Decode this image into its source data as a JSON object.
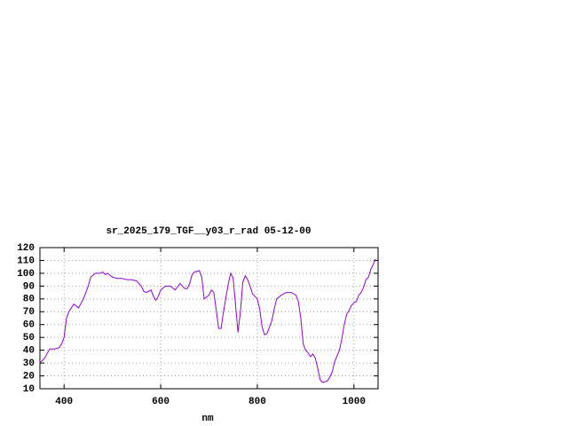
{
  "chart_data": {
    "type": "line",
    "title": "sr_2025_179_TGF__y03_r_rad 05-12-00",
    "xlabel": "nm",
    "color": "#9400d3",
    "grid": true,
    "xlim": [
      350,
      1050
    ],
    "xticks": [
      400,
      600,
      800,
      1000
    ],
    "ylim": [
      10,
      120
    ],
    "yticks": [
      10,
      20,
      30,
      40,
      50,
      60,
      70,
      80,
      90,
      100,
      110,
      120
    ],
    "x": [
      350,
      360,
      370,
      380,
      390,
      395,
      400,
      405,
      410,
      420,
      430,
      440,
      450,
      455,
      465,
      475,
      480,
      485,
      490,
      500,
      510,
      520,
      530,
      540,
      550,
      560,
      565,
      570,
      580,
      585,
      590,
      595,
      600,
      610,
      620,
      630,
      640,
      650,
      655,
      660,
      665,
      670,
      680,
      685,
      690,
      700,
      705,
      710,
      715,
      720,
      725,
      730,
      740,
      745,
      750,
      755,
      760,
      765,
      770,
      775,
      780,
      785,
      790,
      795,
      800,
      805,
      810,
      815,
      820,
      830,
      835,
      840,
      850,
      860,
      870,
      880,
      885,
      890,
      895,
      900,
      905,
      910,
      915,
      920,
      925,
      930,
      935,
      945,
      950,
      955,
      960,
      970,
      975,
      980,
      985,
      990,
      995,
      1000,
      1005,
      1010,
      1015,
      1020,
      1025,
      1030,
      1035,
      1040,
      1045
    ],
    "values": [
      30,
      34,
      41,
      41,
      42,
      45,
      50,
      65,
      70,
      76,
      73,
      80,
      90,
      97,
      100,
      100,
      101,
      99,
      100,
      97,
      96,
      96,
      95,
      95,
      94,
      90,
      86,
      85,
      87,
      82,
      79,
      82,
      87,
      90,
      90,
      87,
      92,
      88,
      88,
      92,
      99,
      101,
      102,
      97,
      80,
      83,
      87,
      85,
      71,
      57,
      57,
      70,
      92,
      100,
      96,
      75,
      54,
      70,
      93,
      98,
      95,
      90,
      84,
      82,
      80,
      72,
      58,
      52,
      53,
      63,
      72,
      80,
      83,
      85,
      85,
      83,
      78,
      65,
      45,
      40,
      38,
      35,
      37,
      34,
      26,
      17,
      15,
      16,
      19,
      23,
      31,
      40,
      49,
      60,
      68,
      71,
      75,
      77,
      78,
      83,
      85,
      89,
      95,
      97,
      103,
      107,
      111
    ]
  }
}
